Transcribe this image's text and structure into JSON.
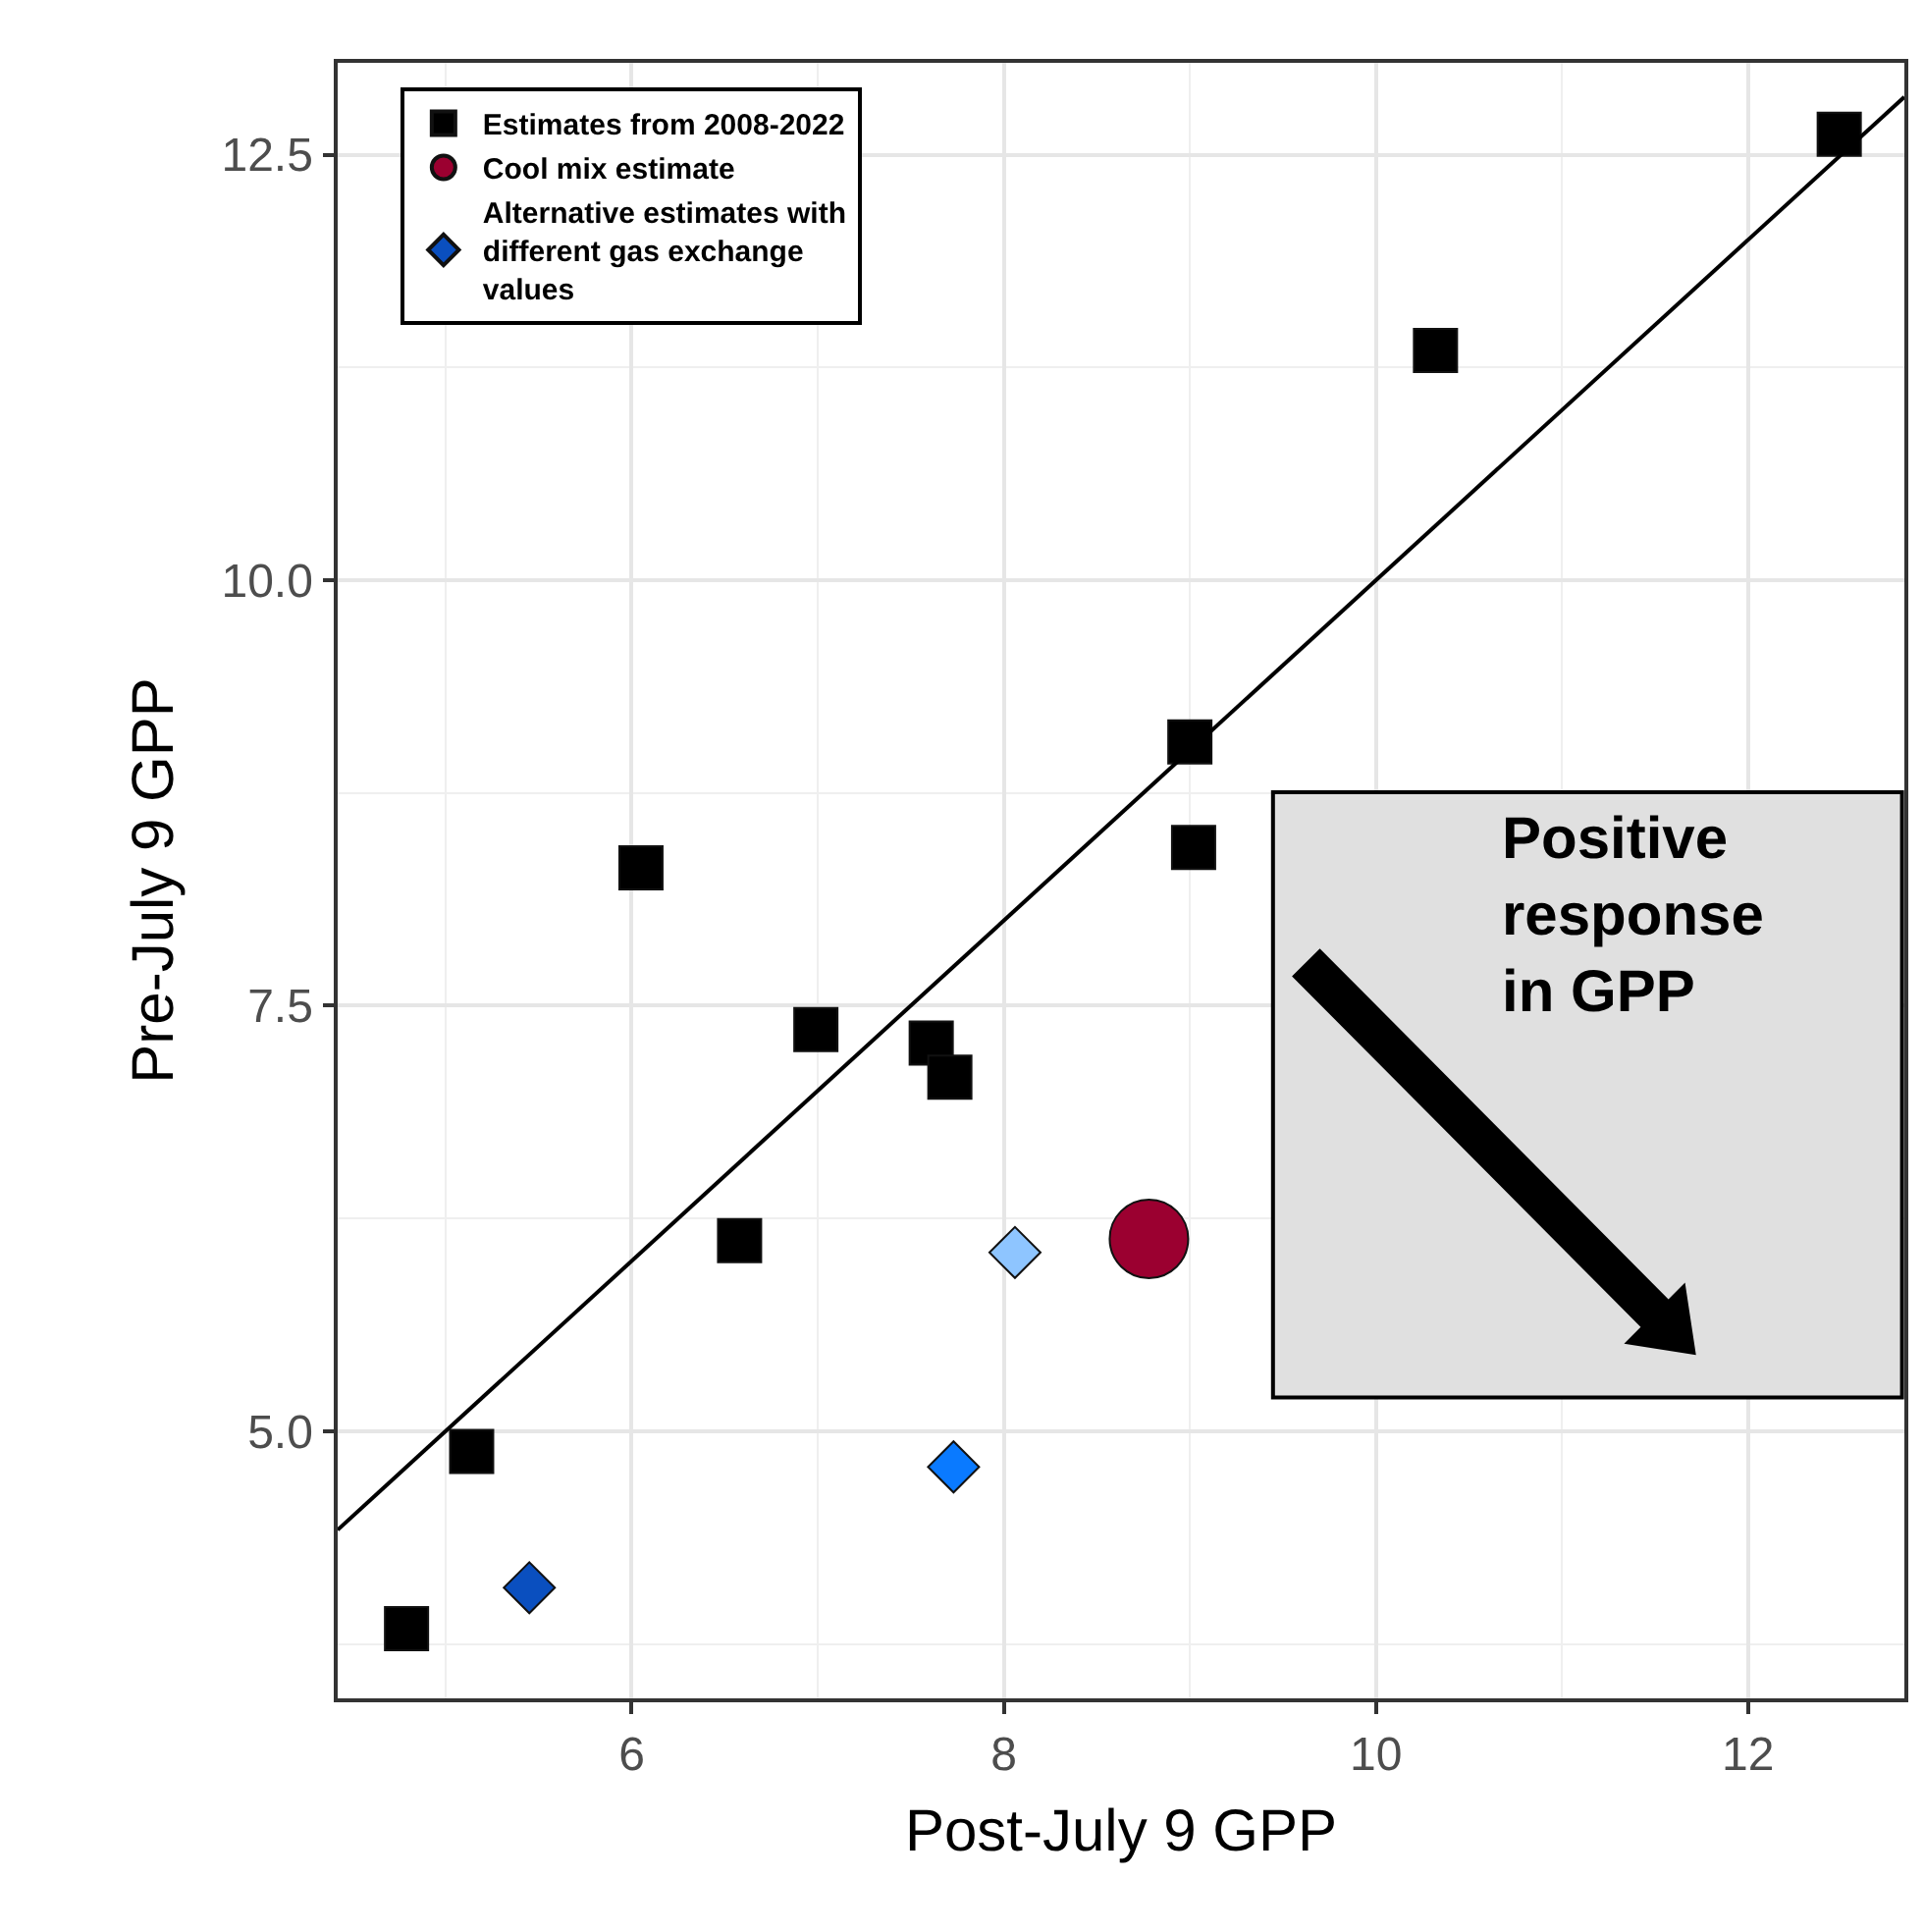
{
  "chart_data": {
    "type": "scatter",
    "xlabel": "Post-July 9 GPP",
    "ylabel": "Pre-July 9 GPP",
    "xlim": [
      4.42,
      12.84
    ],
    "ylim": [
      3.43,
      13.04
    ],
    "xticks": [
      6,
      8,
      10,
      12
    ],
    "yticks": [
      {
        "value": 5,
        "label": "5.0"
      },
      {
        "value": 7.5,
        "label": "7.5"
      },
      {
        "value": 10,
        "label": "10.0"
      },
      {
        "value": 12.5,
        "label": "12.5"
      }
    ],
    "grid": true,
    "legend": "top left",
    "series": [
      {
        "name": "Estimates from 2008-2022",
        "color": "#000000",
        "marker": "square",
        "x": [
          4.79,
          5.14,
          6.05,
          6.58,
          6.99,
          7.61,
          7.71,
          9.0,
          9.02,
          10.32,
          12.49
        ],
        "values": [
          3.84,
          4.88,
          8.31,
          6.12,
          7.36,
          7.28,
          7.08,
          9.05,
          8.43,
          11.35,
          12.62
        ]
      },
      {
        "name": "Cool mix estimate",
        "color": "#9b0030",
        "marker": "circle",
        "x": [
          8.78
        ],
        "values": [
          6.13
        ]
      },
      {
        "name": "Alternative estimates with\ndifferent gas exchange\nvalues",
        "color": "#0a7aff",
        "colors": [
          "#0a4fbf",
          "#0a7aff",
          "#8ec5ff"
        ],
        "marker": "diamond",
        "x": [
          5.45,
          7.73,
          8.06
        ],
        "values": [
          4.08,
          4.79,
          6.05
        ]
      },
      {
        "type": "line",
        "color": "#000000",
        "marker": "none",
        "line_style": "solid",
        "x": [
          4.42,
          12.84
        ],
        "values": [
          4.42,
          12.84
        ]
      }
    ],
    "annotations": [
      "Positive\nresponse\nin GPP"
    ]
  }
}
